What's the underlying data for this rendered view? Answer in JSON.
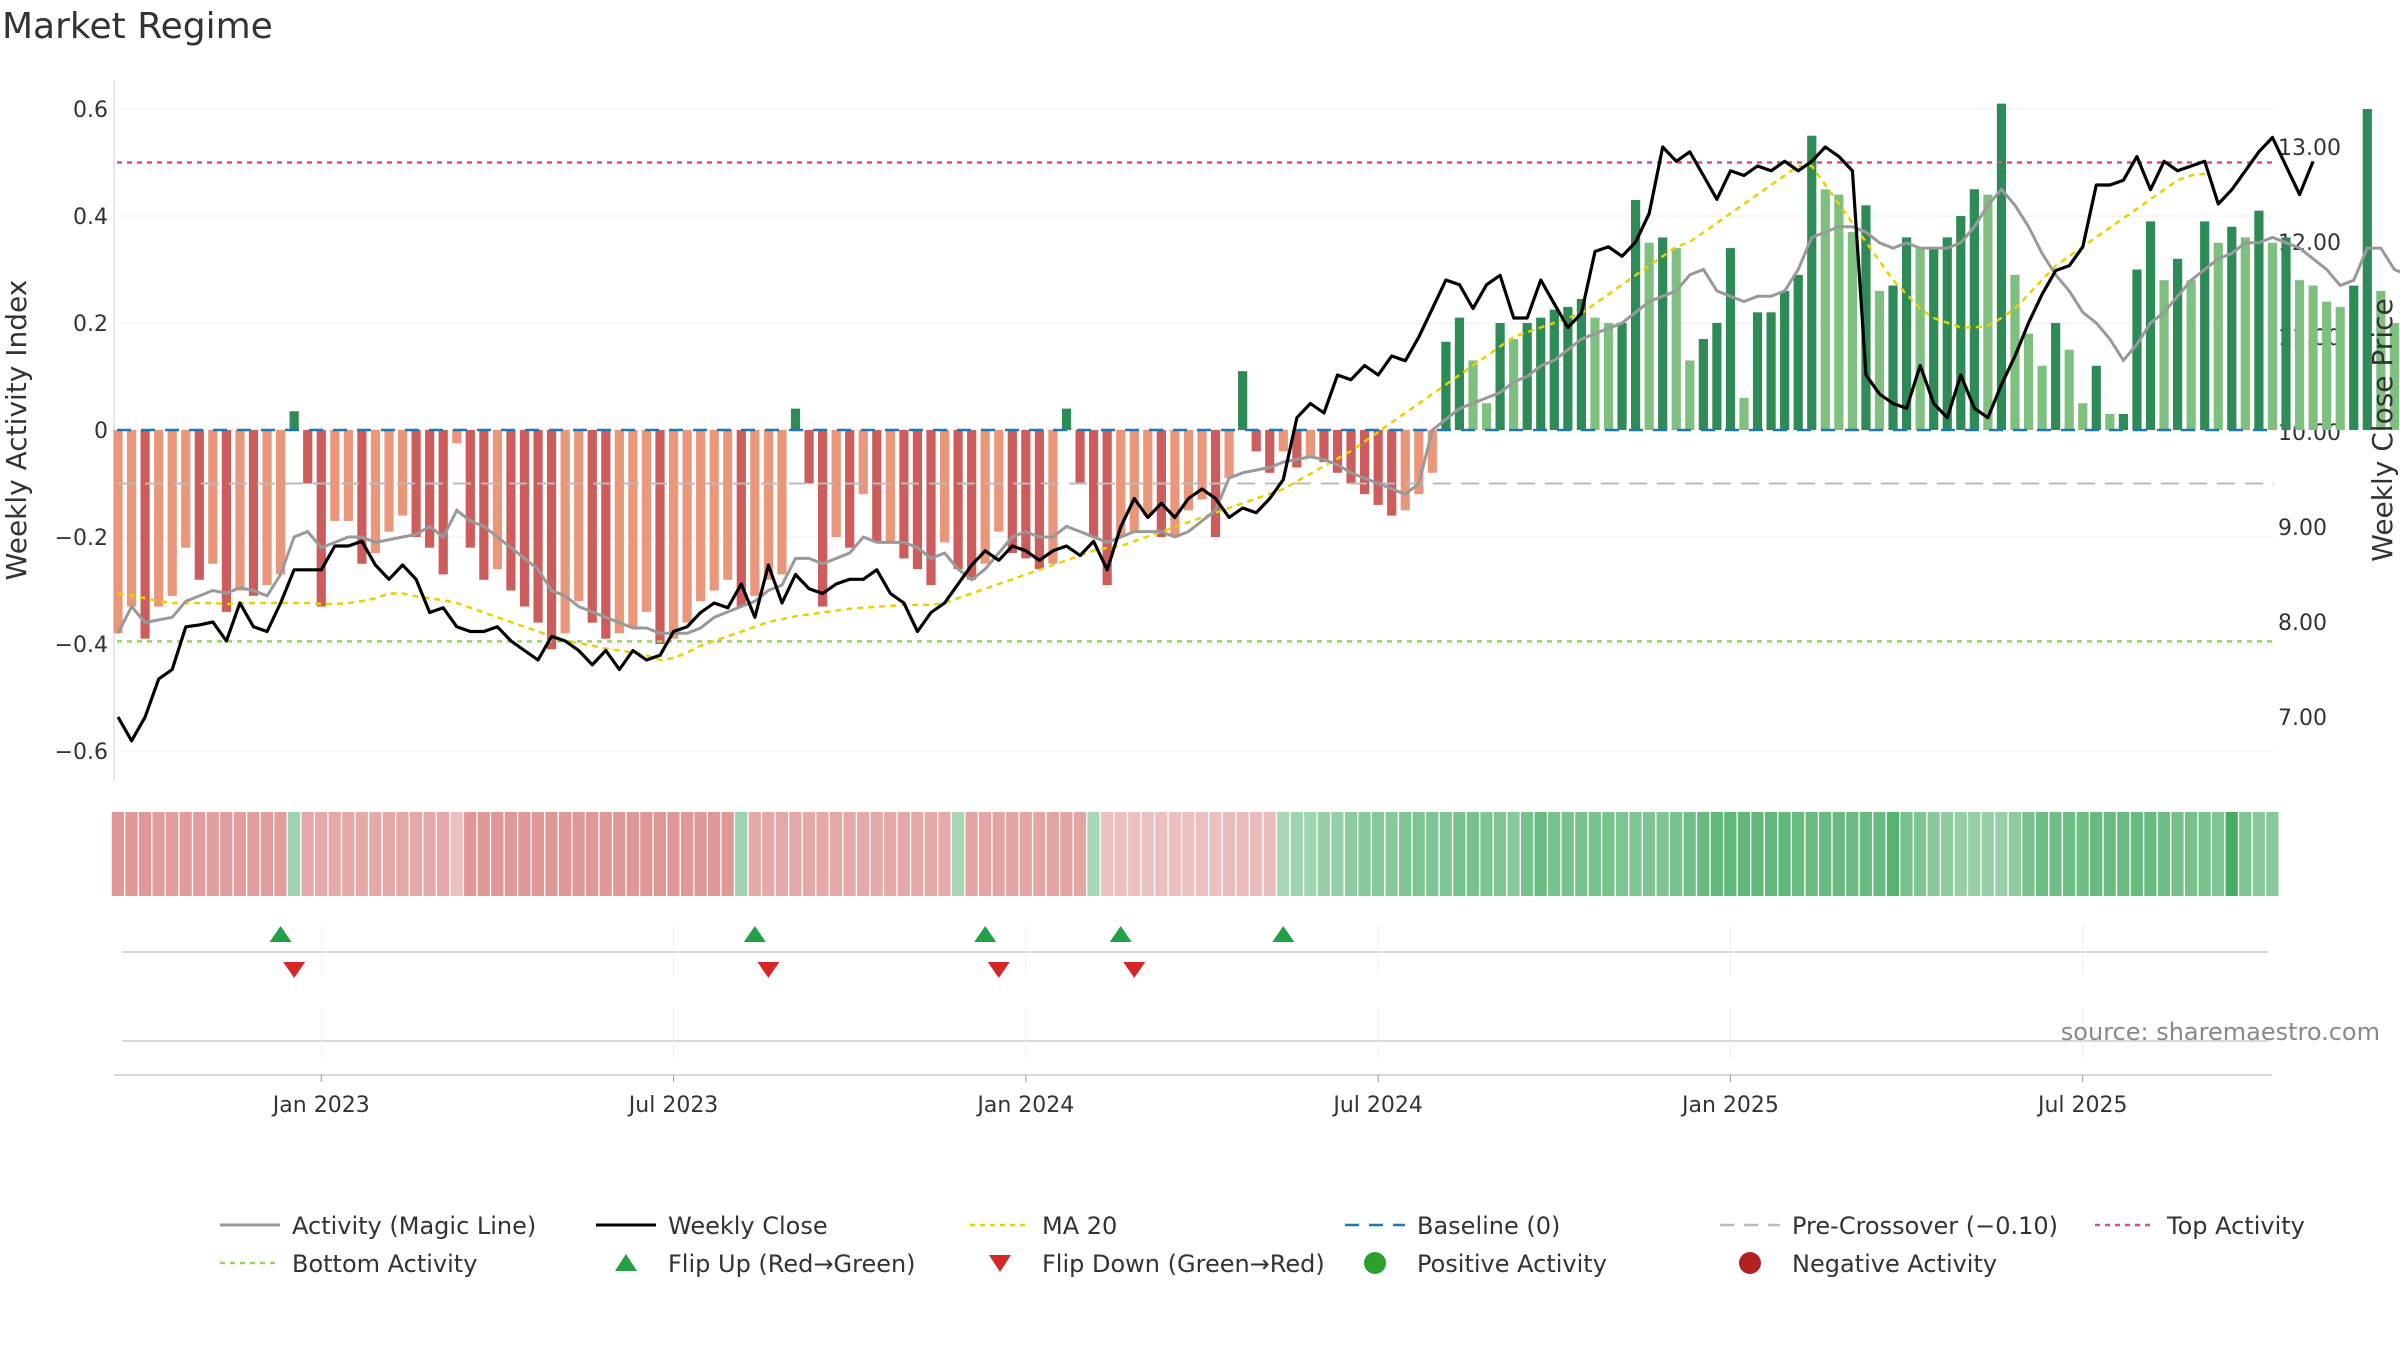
{
  "chart_data": {
    "type": "bar",
    "title": "Market Regime",
    "source_note": "source: sharemaestro.com",
    "ylabel_left": "Weekly Activity Index",
    "ylabel_right": "Weekly Close Price",
    "ylim_left": [
      -0.66,
      0.6
    ],
    "ylim_right": [
      6.2,
      13.6
    ],
    "yticks_left": [
      {
        "v": 0.6,
        "label": "0.6"
      },
      {
        "v": 0.4,
        "label": "0.4"
      },
      {
        "v": 0.2,
        "label": "0.2"
      },
      {
        "v": 0,
        "label": "0"
      },
      {
        "v": -0.2,
        "label": "−0.2"
      },
      {
        "v": -0.4,
        "label": "−0.4"
      },
      {
        "v": -0.6,
        "label": "−0.6"
      }
    ],
    "yticks_right": [
      {
        "v": 13,
        "label": "13.00"
      },
      {
        "v": 12,
        "label": "12.00"
      },
      {
        "v": 11,
        "label": "11.00"
      },
      {
        "v": 10,
        "label": "10.00"
      },
      {
        "v": 9,
        "label": "9.00"
      },
      {
        "v": 8,
        "label": "8.00"
      },
      {
        "v": 7,
        "label": "7.00"
      }
    ],
    "x_range_weeks": [
      0,
      155
    ],
    "xticks": [
      {
        "week": 15,
        "label": "Jan 2023"
      },
      {
        "week": 41,
        "label": "Jul 2023"
      },
      {
        "week": 67,
        "label": "Jan 2024"
      },
      {
        "week": 93,
        "label": "Jul 2024"
      },
      {
        "week": 119,
        "label": "Jan 2025"
      },
      {
        "week": 145,
        "label": "Jul 2025"
      }
    ],
    "reference_lines": {
      "baseline": 0,
      "pre_crossover": -0.1,
      "top_activity": 0.5,
      "bottom_activity": -0.395
    },
    "colors": {
      "strong_green": "#2e8b57",
      "light_green": "#7fbf7f",
      "strong_red": "#cd5c5c",
      "light_red": "#e9967a",
      "close": "#000000",
      "magic": "#999999",
      "ma20": "#e6d200",
      "baseline": "#1f77b4",
      "pre": "#bbbbbb",
      "top": "#e05070",
      "bottom": "#9ad26a",
      "flip_up": "#22a046",
      "flip_down": "#d62728",
      "pos_dot": "#2ca02c",
      "neg_dot": "#b22222"
    },
    "activity": [
      -0.38,
      -0.33,
      -0.39,
      -0.33,
      -0.31,
      -0.22,
      -0.28,
      -0.25,
      -0.34,
      -0.3,
      -0.31,
      -0.29,
      -0.27,
      0.035,
      -0.1,
      -0.33,
      -0.17,
      -0.17,
      -0.25,
      -0.23,
      -0.19,
      -0.16,
      -0.2,
      -0.22,
      -0.27,
      -0.025,
      -0.22,
      -0.28,
      -0.26,
      -0.3,
      -0.33,
      -0.36,
      -0.41,
      -0.38,
      -0.32,
      -0.36,
      -0.39,
      -0.38,
      -0.37,
      -0.34,
      -0.4,
      -0.39,
      -0.36,
      -0.32,
      -0.3,
      -0.28,
      -0.33,
      -0.31,
      -0.28,
      -0.27,
      0.04,
      -0.1,
      -0.33,
      -0.2,
      -0.22,
      -0.12,
      -0.21,
      -0.21,
      -0.24,
      -0.26,
      -0.29,
      -0.21,
      -0.26,
      -0.28,
      -0.25,
      -0.19,
      -0.23,
      -0.24,
      -0.26,
      -0.25,
      0.04,
      -0.1,
      -0.2,
      -0.29,
      -0.2,
      -0.19,
      -0.16,
      -0.2,
      -0.2,
      -0.15,
      -0.13,
      -0.2,
      -0.09,
      0.11,
      -0.04,
      -0.08,
      -0.04,
      -0.07,
      -0.05,
      -0.06,
      -0.08,
      -0.1,
      -0.12,
      -0.14,
      -0.16,
      -0.15,
      -0.12,
      -0.08,
      0.165,
      0.21,
      0.13,
      0.05,
      0.2,
      0.17,
      0.2,
      0.21,
      0.225,
      0.23,
      0.245,
      0.21,
      0.2,
      0.2,
      0.43,
      0.35,
      0.36,
      0.34,
      0.13,
      0.17,
      0.2,
      0.34,
      0.06,
      0.22,
      0.22,
      0.26,
      0.29,
      0.55,
      0.45,
      0.44,
      0.37,
      0.42,
      0.26,
      0.27,
      0.36,
      0.34,
      0.34,
      0.36,
      0.4,
      0.45,
      0.44,
      0.61,
      0.29,
      0.18,
      0.12,
      0.2,
      0.15,
      0.05,
      0.12,
      0.03,
      0.03,
      0.3,
      0.39,
      0.28,
      0.32,
      0.28,
      0.39,
      0.35,
      0.38,
      0.36,
      0.41,
      0.35,
      0.36,
      0.28,
      0.27,
      0.24,
      0.23,
      0.27,
      0.6,
      0.26,
      0.2,
      0.24
    ],
    "close": [
      7.0,
      6.75,
      7.0,
      7.4,
      7.5,
      7.95,
      7.97,
      8.0,
      7.8,
      8.2,
      7.95,
      7.9,
      8.2,
      8.55,
      8.55,
      8.55,
      8.8,
      8.8,
      8.85,
      8.6,
      8.45,
      8.6,
      8.45,
      8.1,
      8.15,
      7.95,
      7.9,
      7.9,
      7.95,
      7.8,
      7.7,
      7.6,
      7.85,
      7.8,
      7.7,
      7.55,
      7.7,
      7.5,
      7.7,
      7.6,
      7.65,
      7.9,
      7.95,
      8.1,
      8.2,
      8.15,
      8.4,
      8.05,
      8.6,
      8.2,
      8.5,
      8.35,
      8.3,
      8.4,
      8.45,
      8.45,
      8.55,
      8.3,
      8.2,
      7.9,
      8.1,
      8.2,
      8.4,
      8.6,
      8.75,
      8.65,
      8.8,
      8.75,
      8.65,
      8.75,
      8.8,
      8.7,
      8.85,
      8.55,
      9.0,
      9.3,
      9.1,
      9.25,
      9.1,
      9.3,
      9.4,
      9.3,
      9.1,
      9.2,
      9.15,
      9.3,
      9.5,
      10.15,
      10.3,
      10.2,
      10.6,
      10.55,
      10.7,
      10.6,
      10.8,
      10.75,
      11.0,
      11.3,
      11.6,
      11.55,
      11.3,
      11.55,
      11.65,
      11.2,
      11.2,
      11.6,
      11.35,
      11.1,
      11.25,
      11.9,
      11.95,
      11.85,
      12.0,
      12.3,
      13.0,
      12.85,
      12.95,
      12.7,
      12.45,
      12.75,
      12.7,
      12.8,
      12.75,
      12.85,
      12.75,
      12.85,
      13.0,
      12.9,
      12.75,
      10.6,
      10.4,
      10.3,
      10.25,
      10.7,
      10.3,
      10.15,
      10.6,
      10.25,
      10.15,
      10.5,
      10.8,
      11.15,
      11.45,
      11.7,
      11.75,
      11.95,
      12.6,
      12.6,
      12.65,
      12.9,
      12.55,
      12.85,
      12.75,
      12.8,
      12.85,
      12.4,
      12.55,
      12.75,
      12.95,
      13.1,
      12.8,
      12.5,
      12.85
    ],
    "magic_line": [
      -0.38,
      -0.33,
      -0.36,
      -0.355,
      -0.35,
      -0.32,
      -0.31,
      -0.3,
      -0.305,
      -0.295,
      -0.3,
      -0.31,
      -0.27,
      -0.2,
      -0.19,
      -0.22,
      -0.21,
      -0.2,
      -0.2,
      -0.21,
      -0.205,
      -0.2,
      -0.195,
      -0.18,
      -0.2,
      -0.15,
      -0.17,
      -0.18,
      -0.2,
      -0.22,
      -0.24,
      -0.26,
      -0.3,
      -0.31,
      -0.33,
      -0.34,
      -0.35,
      -0.36,
      -0.37,
      -0.37,
      -0.38,
      -0.38,
      -0.38,
      -0.37,
      -0.35,
      -0.34,
      -0.33,
      -0.32,
      -0.3,
      -0.29,
      -0.24,
      -0.24,
      -0.25,
      -0.24,
      -0.23,
      -0.2,
      -0.21,
      -0.21,
      -0.21,
      -0.22,
      -0.24,
      -0.23,
      -0.26,
      -0.28,
      -0.26,
      -0.23,
      -0.2,
      -0.19,
      -0.2,
      -0.2,
      -0.18,
      -0.19,
      -0.2,
      -0.21,
      -0.2,
      -0.19,
      -0.19,
      -0.19,
      -0.2,
      -0.19,
      -0.17,
      -0.15,
      -0.09,
      -0.08,
      -0.075,
      -0.07,
      -0.06,
      -0.055,
      -0.05,
      -0.055,
      -0.065,
      -0.08,
      -0.09,
      -0.1,
      -0.11,
      -0.12,
      -0.1,
      0.0,
      0.02,
      0.04,
      0.05,
      0.06,
      0.07,
      0.09,
      0.1,
      0.12,
      0.13,
      0.15,
      0.17,
      0.18,
      0.19,
      0.2,
      0.22,
      0.24,
      0.25,
      0.26,
      0.29,
      0.3,
      0.26,
      0.25,
      0.24,
      0.25,
      0.25,
      0.26,
      0.3,
      0.36,
      0.37,
      0.38,
      0.38,
      0.37,
      0.35,
      0.34,
      0.35,
      0.34,
      0.34,
      0.34,
      0.35,
      0.38,
      0.42,
      0.45,
      0.42,
      0.38,
      0.33,
      0.29,
      0.26,
      0.22,
      0.2,
      0.17,
      0.13,
      0.16,
      0.2,
      0.22,
      0.25,
      0.28,
      0.3,
      0.32,
      0.33,
      0.35,
      0.35,
      0.36,
      0.35,
      0.34,
      0.32,
      0.3,
      0.27,
      0.28,
      0.34,
      0.34,
      0.3,
      0.29
    ],
    "ma20": [
      8.3,
      8.28,
      8.25,
      8.22,
      8.2,
      8.2,
      8.2,
      8.2,
      8.19,
      8.2,
      8.2,
      8.2,
      8.2,
      8.2,
      8.2,
      8.19,
      8.19,
      8.2,
      8.22,
      8.25,
      8.3,
      8.3,
      8.27,
      8.25,
      8.23,
      8.2,
      8.15,
      8.1,
      8.05,
      8.0,
      7.95,
      7.9,
      7.85,
      7.8,
      7.78,
      7.75,
      7.72,
      7.7,
      7.68,
      7.65,
      7.6,
      7.62,
      7.68,
      7.75,
      7.8,
      7.85,
      7.9,
      7.95,
      8.0,
      8.03,
      8.06,
      8.08,
      8.1,
      8.12,
      8.14,
      8.15,
      8.16,
      8.17,
      8.18,
      8.18,
      8.18,
      8.2,
      8.25,
      8.3,
      8.35,
      8.4,
      8.45,
      8.5,
      8.55,
      8.6,
      8.65,
      8.7,
      8.75,
      8.78,
      8.8,
      8.85,
      8.9,
      8.95,
      9.0,
      9.05,
      9.1,
      9.15,
      9.2,
      9.25,
      9.3,
      9.35,
      9.4,
      9.48,
      9.56,
      9.64,
      9.72,
      9.8,
      9.9,
      10.0,
      10.1,
      10.2,
      10.3,
      10.4,
      10.5,
      10.6,
      10.7,
      10.8,
      10.9,
      11.0,
      11.05,
      11.1,
      11.15,
      11.2,
      11.25,
      11.35,
      11.45,
      11.55,
      11.65,
      11.75,
      11.85,
      11.95,
      12.0,
      12.1,
      12.2,
      12.3,
      12.4,
      12.5,
      12.6,
      12.7,
      12.8,
      12.8,
      12.6,
      12.4,
      12.2,
      12.0,
      11.8,
      11.6,
      11.45,
      11.3,
      11.2,
      11.15,
      11.1,
      11.1,
      11.12,
      11.2,
      11.3,
      11.45,
      11.6,
      11.75,
      11.85,
      11.95,
      12.05,
      12.15,
      12.25,
      12.35,
      12.45,
      12.55,
      12.65,
      12.7,
      12.72
    ],
    "regime_strip": [
      0.55,
      0.55,
      0.55,
      0.5,
      0.5,
      0.5,
      0.5,
      0.5,
      0.5,
      0.5,
      0.5,
      0.5,
      0.5,
      -0.35,
      0.4,
      0.4,
      0.4,
      0.4,
      0.4,
      0.4,
      0.4,
      0.4,
      0.4,
      0.4,
      0.4,
      0.2,
      0.55,
      0.55,
      0.55,
      0.55,
      0.55,
      0.55,
      0.55,
      0.55,
      0.55,
      0.55,
      0.55,
      0.55,
      0.55,
      0.55,
      0.55,
      0.55,
      0.55,
      0.55,
      0.55,
      0.55,
      -0.35,
      0.4,
      0.4,
      0.4,
      0.4,
      0.4,
      0.4,
      0.4,
      0.4,
      0.4,
      0.4,
      0.4,
      0.4,
      0.4,
      0.4,
      0.4,
      -0.3,
      0.45,
      0.45,
      0.45,
      0.45,
      0.45,
      0.45,
      0.45,
      0.45,
      0.45,
      -0.3,
      0.2,
      0.2,
      0.2,
      0.2,
      0.2,
      0.2,
      0.2,
      0.2,
      0.2,
      0.25,
      0.25,
      0.25,
      0.25,
      -0.3,
      -0.35,
      -0.35,
      -0.4,
      -0.4,
      -0.45,
      -0.5,
      -0.5,
      -0.5,
      -0.55,
      -0.55,
      -0.55,
      -0.55,
      -0.6,
      -0.6,
      -0.55,
      -0.55,
      -0.5,
      -0.6,
      -0.7,
      -0.6,
      -0.6,
      -0.6,
      -0.6,
      -0.6,
      -0.55,
      -0.55,
      -0.55,
      -0.55,
      -0.6,
      -0.65,
      -0.7,
      -0.75,
      -0.75,
      -0.75,
      -0.75,
      -0.75,
      -0.75,
      -0.7,
      -0.7,
      -0.7,
      -0.7,
      -0.7,
      -0.7,
      -0.7,
      -0.8,
      -0.6,
      -0.55,
      -0.5,
      -0.45,
      -0.4,
      -0.4,
      -0.4,
      -0.4,
      -0.45,
      -0.6,
      -0.65,
      -0.65,
      -0.65,
      -0.65,
      -0.7,
      -0.7,
      -0.7,
      -0.7,
      -0.7,
      -0.65,
      -0.6,
      -0.6,
      -0.6,
      -0.55,
      -0.9,
      -0.55,
      -0.5,
      -0.5
    ],
    "flip_up_weeks": [
      12,
      47,
      64,
      74,
      86
    ],
    "flip_down_weeks": [
      13,
      48,
      65,
      75
    ]
  },
  "legend": {
    "items": [
      {
        "key": "magic",
        "kind": "line",
        "label": "Activity (Magic Line)"
      },
      {
        "key": "close",
        "kind": "line",
        "label": "Weekly Close"
      },
      {
        "key": "ma20",
        "kind": "dotted",
        "label": "MA 20"
      },
      {
        "key": "baseline",
        "kind": "dashed",
        "label": "Baseline (0)"
      },
      {
        "key": "pre",
        "kind": "dashed",
        "label": "Pre-Crossover (−0.10)"
      },
      {
        "key": "top",
        "kind": "dotted",
        "label": "Top Activity"
      },
      {
        "key": "bottom",
        "kind": "dotted",
        "label": "Bottom Activity"
      },
      {
        "key": "flip_up",
        "kind": "tri-up",
        "label": "Flip Up (Red→Green)"
      },
      {
        "key": "flip_down",
        "kind": "tri-down",
        "label": "Flip Down (Green→Red)"
      },
      {
        "key": "pos_dot",
        "kind": "dot",
        "label": "Positive Activity"
      },
      {
        "key": "neg_dot",
        "kind": "dot",
        "label": "Negative Activity"
      }
    ]
  }
}
